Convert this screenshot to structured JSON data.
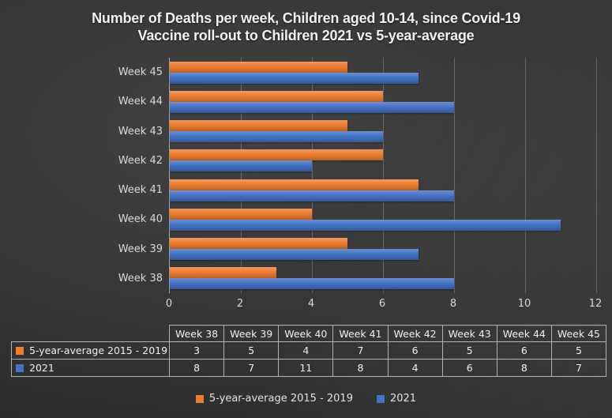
{
  "title": {
    "line1": "Number of Deaths per week, Children aged 10-14, since Covid-19",
    "line2": "Vaccine roll-out to Children 2021 vs 5-year-average"
  },
  "chart_data": {
    "type": "bar",
    "orientation": "horizontal",
    "title": "Number of Deaths per week, Children aged 10-14, since Covid-19 Vaccine roll-out to Children 2021 vs 5-year-average",
    "categories": [
      "Week 38",
      "Week 39",
      "Week 40",
      "Week 41",
      "Week 42",
      "Week 43",
      "Week 44",
      "Week 45"
    ],
    "series": [
      {
        "name": "5-year-average 2015 - 2019",
        "color": "#ED7D31",
        "values": [
          3,
          5,
          4,
          7,
          6,
          5,
          6,
          5
        ]
      },
      {
        "name": "2021",
        "color": "#4472C4",
        "values": [
          8,
          7,
          11,
          8,
          4,
          6,
          8,
          7
        ]
      }
    ],
    "xlabel": "",
    "ylabel": "",
    "xlim": [
      0,
      12
    ],
    "xticks": [
      0,
      2,
      4,
      6,
      8,
      10,
      12
    ],
    "category_order_on_chart": "Week 45 at top, Week 38 at bottom",
    "gridlines": "vertical",
    "legend_position": "bottom",
    "data_table_shown": true,
    "background_color": "#333333",
    "text_color": "#F2F2F2"
  }
}
